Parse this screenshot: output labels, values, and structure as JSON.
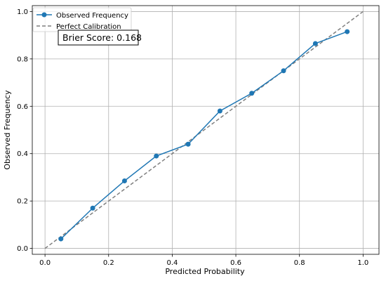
{
  "chart_data": {
    "type": "line",
    "xlabel": "Predicted Probability",
    "ylabel": "Observed Frequency",
    "xlim": [
      -0.04,
      1.05
    ],
    "ylim": [
      -0.025,
      1.025
    ],
    "xticks": [
      0.0,
      0.2,
      0.4,
      0.6,
      0.8,
      1.0
    ],
    "yticks": [
      0.0,
      0.2,
      0.4,
      0.6,
      0.8,
      1.0
    ],
    "xtick_labels": [
      "0.0",
      "0.2",
      "0.4",
      "0.6",
      "0.8",
      "1.0"
    ],
    "ytick_labels": [
      "0.0",
      "0.2",
      "0.4",
      "0.6",
      "0.8",
      "1.0"
    ],
    "grid": true,
    "legend_position": "top-left",
    "series": [
      {
        "name": "Observed Frequency",
        "style": "solid line with circle markers",
        "color": "#1f77b4",
        "x": [
          0.05,
          0.15,
          0.25,
          0.35,
          0.45,
          0.55,
          0.65,
          0.75,
          0.85,
          0.95
        ],
        "y": [
          0.04,
          0.17,
          0.285,
          0.39,
          0.44,
          0.58,
          0.655,
          0.75,
          0.865,
          0.915
        ]
      },
      {
        "name": "Perfect Calibration",
        "style": "dashed line",
        "color": "#7f7f7f",
        "x": [
          0.0,
          1.0
        ],
        "y": [
          0.0,
          1.0
        ]
      }
    ],
    "annotation": "Brier Score: 0.168"
  }
}
